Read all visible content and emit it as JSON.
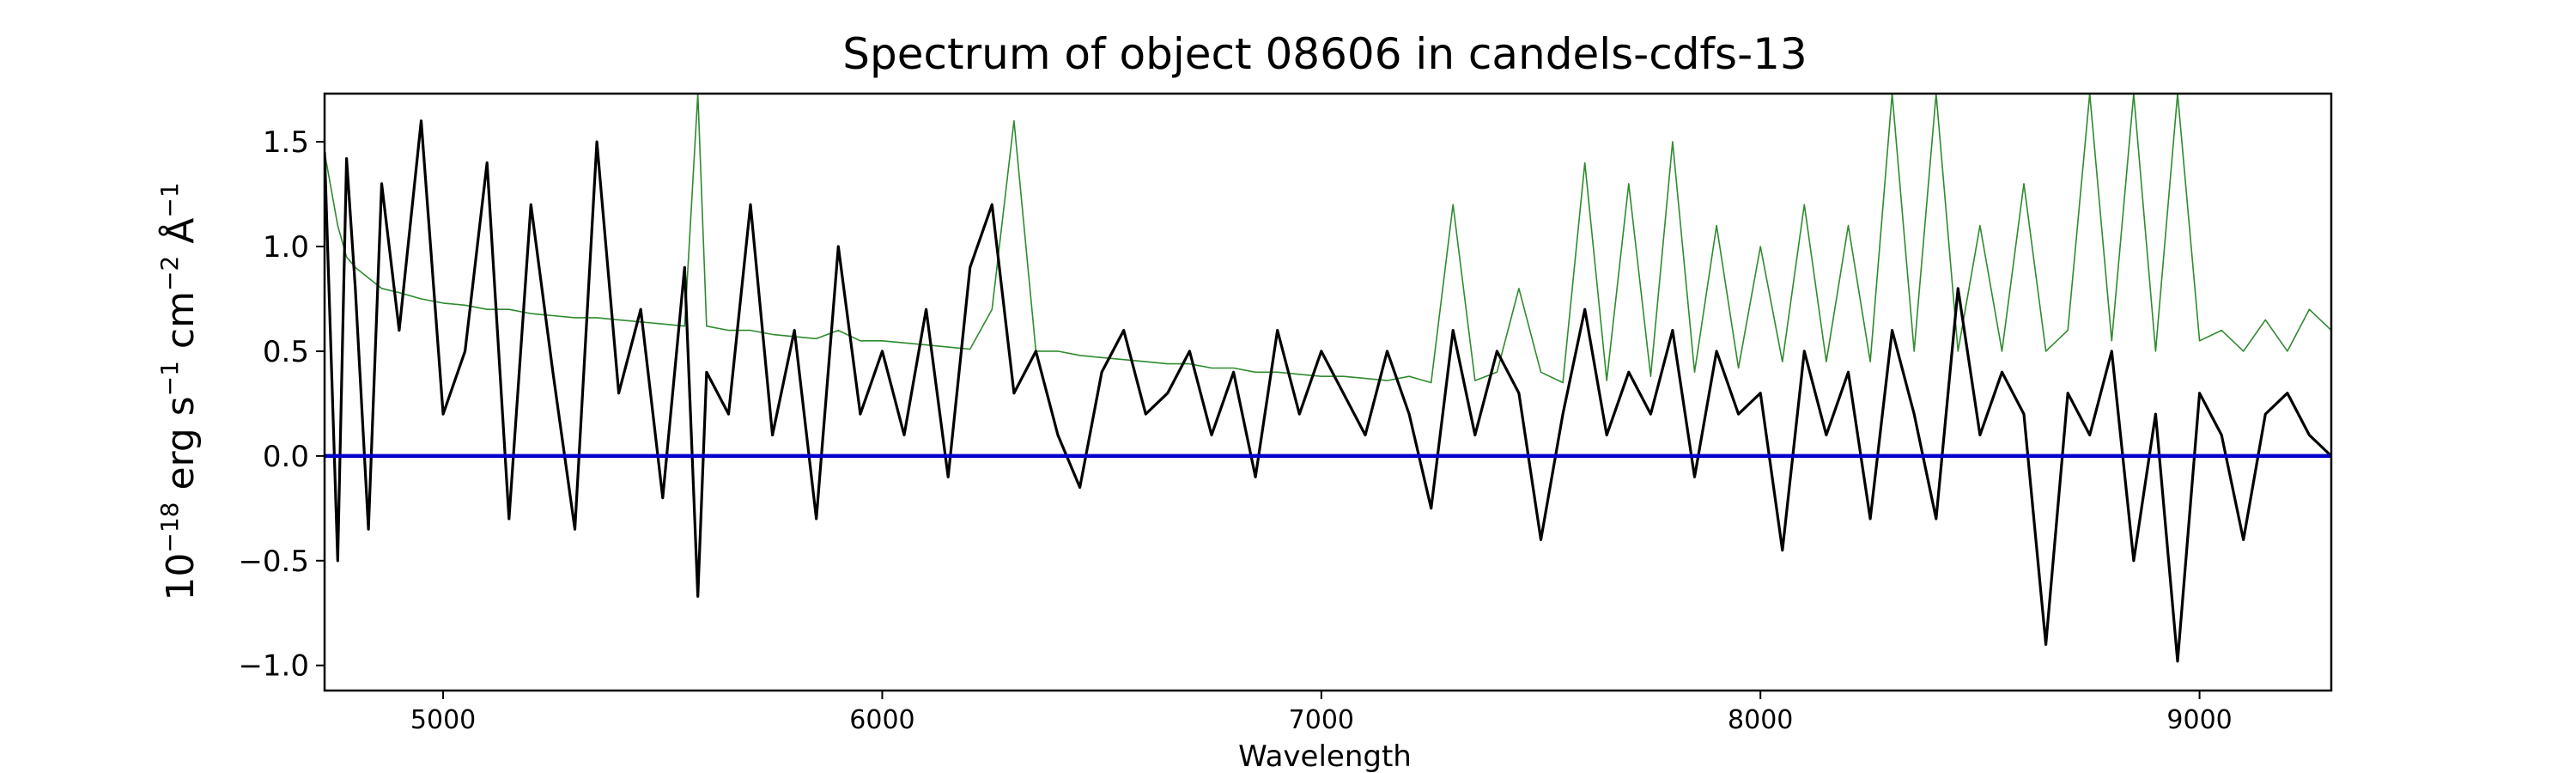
{
  "chart_data": {
    "type": "line",
    "title": "Spectrum of object 08606 in candels-cdfs-13",
    "xlabel": "Wavelength",
    "ylabel": {
      "base": "10",
      "exp": "−18",
      "unit1": " erg s",
      "unit1_exp": "−1",
      "unit2": " cm",
      "unit2_exp": "−2",
      "unit3": " Å",
      "unit3_exp": "−1"
    },
    "xlim": [
      4730,
      9300
    ],
    "ylim": [
      -1.12,
      1.73
    ],
    "xticks": [
      5000,
      6000,
      7000,
      8000,
      9000
    ],
    "xtick_labels": [
      "5000",
      "6000",
      "7000",
      "8000",
      "9000"
    ],
    "yticks": [
      -1.0,
      -0.5,
      0.0,
      0.5,
      1.0,
      1.5
    ],
    "ytick_labels": [
      "−1.0",
      "−0.5",
      "0.0",
      "0.5",
      "1.0",
      "1.5"
    ],
    "grid": false,
    "colors": {
      "flux": "#000000",
      "error": "#2e8b2e",
      "zero": "#0000cc"
    },
    "series": [
      {
        "x": [
          4730,
          4760,
          4780,
          4800,
          4830,
          4860,
          4900,
          4950,
          5000,
          5050,
          5100,
          5150,
          5200,
          5250,
          5300,
          5350,
          5400,
          5450,
          5500,
          5550,
          5580,
          5600,
          5650,
          5700,
          5750,
          5800,
          5850,
          5900,
          5950,
          6000,
          6050,
          6100,
          6150,
          6200,
          6250,
          6300,
          6350,
          6400,
          6450,
          6500,
          6550,
          6600,
          6650,
          6700,
          6750,
          6800,
          6850,
          6900,
          6950,
          7000,
          7050,
          7100,
          7150,
          7200,
          7250,
          7300,
          7350,
          7400,
          7450,
          7500,
          7550,
          7600,
          7650,
          7700,
          7750,
          7800,
          7850,
          7900,
          7950,
          8000,
          8050,
          8100,
          8150,
          8200,
          8250,
          8300,
          8350,
          8400,
          8450,
          8500,
          8550,
          8600,
          8650,
          8700,
          8750,
          8800,
          8850,
          8900,
          8950,
          9000,
          9050,
          9100,
          9150,
          9200,
          9250,
          9300
        ],
        "y": [
          1.45,
          -0.5,
          1.42,
          0.8,
          -0.35,
          1.3,
          0.6,
          1.6,
          0.2,
          0.5,
          1.4,
          -0.3,
          1.2,
          0.4,
          -0.35,
          1.5,
          0.3,
          0.7,
          -0.2,
          0.9,
          -0.67,
          0.4,
          0.2,
          1.2,
          0.1,
          0.6,
          -0.3,
          1.0,
          0.2,
          0.5,
          0.1,
          0.7,
          -0.1,
          0.9,
          1.2,
          0.3,
          0.5,
          0.1,
          -0.15,
          0.4,
          0.6,
          0.2,
          0.3,
          0.5,
          0.1,
          0.4,
          -0.1,
          0.6,
          0.2,
          0.5,
          0.3,
          0.1,
          0.5,
          0.2,
          -0.25,
          0.6,
          0.1,
          0.5,
          0.3,
          -0.4,
          0.2,
          0.7,
          0.1,
          0.4,
          0.2,
          0.6,
          -0.1,
          0.5,
          0.2,
          0.3,
          -0.45,
          0.5,
          0.1,
          0.4,
          -0.3,
          0.6,
          0.2,
          -0.3,
          0.8,
          0.1,
          0.4,
          0.2,
          -0.9,
          0.3,
          0.1,
          0.5,
          -0.5,
          0.2,
          -0.98,
          0.3,
          0.1,
          -0.4,
          0.2,
          0.3,
          0.1,
          0.0
        ]
      },
      {
        "x": [
          4730,
          4760,
          4780,
          4800,
          4830,
          4860,
          4900,
          4950,
          5000,
          5050,
          5100,
          5150,
          5200,
          5250,
          5300,
          5350,
          5400,
          5450,
          5500,
          5550,
          5580,
          5600,
          5650,
          5700,
          5750,
          5800,
          5850,
          5900,
          5950,
          6000,
          6050,
          6100,
          6150,
          6200,
          6250,
          6300,
          6350,
          6400,
          6450,
          6500,
          6550,
          6600,
          6650,
          6700,
          6750,
          6800,
          6850,
          6900,
          6950,
          7000,
          7050,
          7100,
          7150,
          7200,
          7250,
          7300,
          7350,
          7400,
          7450,
          7500,
          7550,
          7600,
          7650,
          7700,
          7750,
          7800,
          7850,
          7900,
          7950,
          8000,
          8050,
          8100,
          8150,
          8200,
          8250,
          8300,
          8350,
          8400,
          8450,
          8500,
          8550,
          8600,
          8650,
          8700,
          8750,
          8800,
          8850,
          8900,
          8950,
          9000,
          9050,
          9100,
          9150,
          9200,
          9250,
          9300
        ],
        "y": [
          1.45,
          1.1,
          0.95,
          0.9,
          0.85,
          0.8,
          0.78,
          0.75,
          0.73,
          0.72,
          0.7,
          0.7,
          0.68,
          0.67,
          0.66,
          0.66,
          0.65,
          0.64,
          0.63,
          0.62,
          1.73,
          0.62,
          0.6,
          0.6,
          0.58,
          0.57,
          0.56,
          0.6,
          0.55,
          0.55,
          0.54,
          0.53,
          0.52,
          0.51,
          0.7,
          1.6,
          0.5,
          0.5,
          0.48,
          0.47,
          0.46,
          0.45,
          0.44,
          0.44,
          0.42,
          0.42,
          0.4,
          0.4,
          0.39,
          0.38,
          0.38,
          0.37,
          0.36,
          0.38,
          0.35,
          1.2,
          0.36,
          0.4,
          0.8,
          0.4,
          0.35,
          1.4,
          0.36,
          1.3,
          0.38,
          1.5,
          0.4,
          1.1,
          0.42,
          1.0,
          0.45,
          1.2,
          0.45,
          1.1,
          0.45,
          1.73,
          0.5,
          1.73,
          0.5,
          1.1,
          0.5,
          1.3,
          0.5,
          0.6,
          1.73,
          0.55,
          1.73,
          0.5,
          1.73,
          0.55,
          0.6,
          0.5,
          0.65,
          0.5,
          0.7,
          0.6
        ]
      },
      {
        "x": [
          4730,
          9300
        ],
        "y": [
          0.0,
          0.0
        ]
      }
    ]
  }
}
